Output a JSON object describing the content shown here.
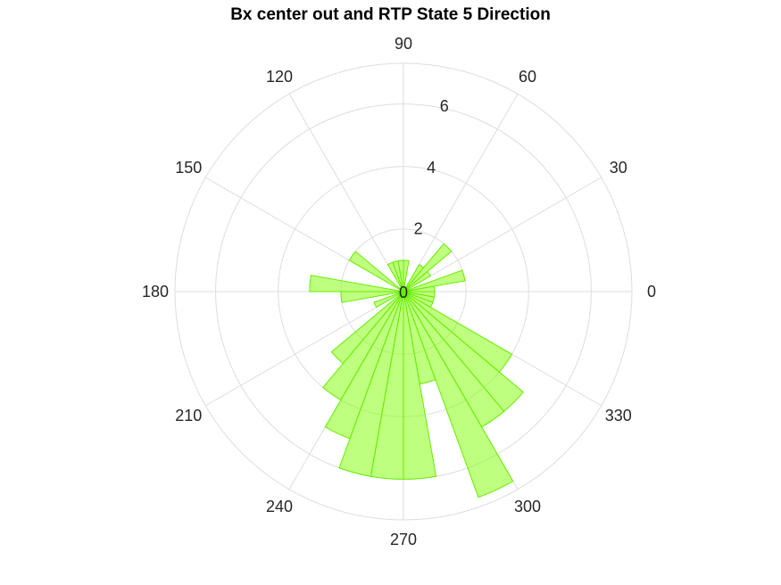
{
  "chart_data": {
    "type": "polar-histogram",
    "title": "Bx  center out and RTP State 5 Direction",
    "angle_unit": "degrees",
    "bin_width_deg": 10,
    "r_max": 7.3,
    "r_ticks": [
      0,
      2,
      4,
      6
    ],
    "r_tick_labels": [
      "0",
      "2",
      "4",
      "6"
    ],
    "theta_ticks": [
      0,
      30,
      60,
      90,
      120,
      150,
      180,
      210,
      240,
      270,
      300,
      330
    ],
    "theta_tick_labels": [
      "0",
      "30",
      "60",
      "90",
      "120",
      "150",
      "180",
      "210",
      "240",
      "270",
      "300",
      "330"
    ],
    "grid": true,
    "bins": [
      {
        "start": 0,
        "end": 10,
        "value": 1.0
      },
      {
        "start": 10,
        "end": 20,
        "value": 2.0
      },
      {
        "start": 20,
        "end": 30,
        "value": 0.0
      },
      {
        "start": 30,
        "end": 40,
        "value": 1.0
      },
      {
        "start": 40,
        "end": 50,
        "value": 2.0
      },
      {
        "start": 50,
        "end": 60,
        "value": 1.0
      },
      {
        "start": 60,
        "end": 70,
        "value": 0.0
      },
      {
        "start": 70,
        "end": 80,
        "value": 0.0
      },
      {
        "start": 80,
        "end": 90,
        "value": 1.0
      },
      {
        "start": 90,
        "end": 100,
        "value": 1.0
      },
      {
        "start": 100,
        "end": 110,
        "value": 1.0
      },
      {
        "start": 110,
        "end": 120,
        "value": 1.0
      },
      {
        "start": 120,
        "end": 130,
        "value": 0.0
      },
      {
        "start": 130,
        "end": 140,
        "value": 0.0
      },
      {
        "start": 140,
        "end": 150,
        "value": 2.0
      },
      {
        "start": 150,
        "end": 160,
        "value": 0.0
      },
      {
        "start": 160,
        "end": 170,
        "value": 0.0
      },
      {
        "start": 170,
        "end": 180,
        "value": 3.0
      },
      {
        "start": 180,
        "end": 190,
        "value": 2.0
      },
      {
        "start": 190,
        "end": 200,
        "value": 0.0
      },
      {
        "start": 200,
        "end": 210,
        "value": 1.0
      },
      {
        "start": 210,
        "end": 220,
        "value": 0.0
      },
      {
        "start": 220,
        "end": 230,
        "value": 3.0
      },
      {
        "start": 230,
        "end": 240,
        "value": 4.0
      },
      {
        "start": 240,
        "end": 250,
        "value": 5.0
      },
      {
        "start": 250,
        "end": 260,
        "value": 6.0
      },
      {
        "start": 260,
        "end": 270,
        "value": 6.0
      },
      {
        "start": 270,
        "end": 280,
        "value": 6.0
      },
      {
        "start": 280,
        "end": 290,
        "value": 3.0
      },
      {
        "start": 290,
        "end": 300,
        "value": 7.0
      },
      {
        "start": 300,
        "end": 310,
        "value": 5.0
      },
      {
        "start": 310,
        "end": 320,
        "value": 5.0
      },
      {
        "start": 320,
        "end": 330,
        "value": 4.0
      },
      {
        "start": 330,
        "end": 340,
        "value": 1.0
      },
      {
        "start": 340,
        "end": 350,
        "value": 1.0
      },
      {
        "start": 350,
        "end": 360,
        "value": 1.0
      }
    ]
  },
  "colors": {
    "bar_fill": "#80ff00",
    "bar_fill_opacity": 0.5,
    "bar_stroke": "#66ee00",
    "grid": "#dddddd",
    "text": "#262626",
    "title": "#000000"
  }
}
